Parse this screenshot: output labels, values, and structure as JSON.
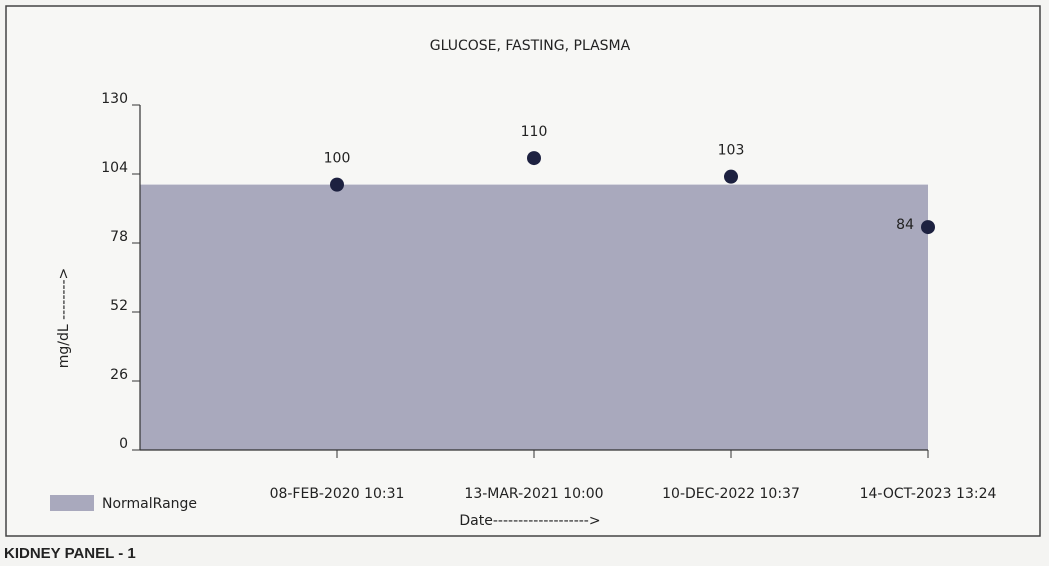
{
  "chart_data": {
    "type": "scatter",
    "title": "GLUCOSE, FASTING, PLASMA",
    "categories": [
      "08-FEB-2020 10:31",
      "13-MAR-2021 10:00",
      "10-DEC-2022 10:37",
      "14-OCT-2023 13:24"
    ],
    "series": [
      {
        "values": [
          100,
          110,
          103,
          84
        ],
        "color": "#1d2140"
      }
    ],
    "ylim": [
      0,
      130
    ],
    "yticks": [
      0,
      26,
      52,
      78,
      104,
      130
    ],
    "y_label": "mg/dL -------->",
    "x_label": "Date------------------->",
    "normal_range": {
      "name": "NormalRange",
      "range": [
        0,
        100
      ],
      "color": "#a9a9bd"
    }
  },
  "footer": "KIDNEY PANEL - 1"
}
